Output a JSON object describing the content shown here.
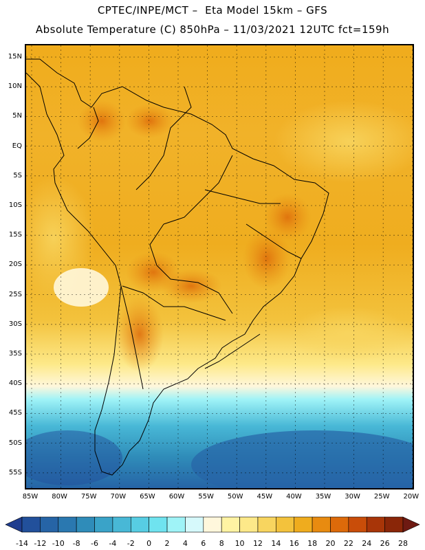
{
  "header": {
    "line1": "CPTEC/INPE/MCT –  Eta Model 15km – GFS",
    "line2": "Absolute Temperature (C) 850hPa – 11/03/2021 12UTC fct=159h"
  },
  "map": {
    "lat_labels": [
      "15N",
      "10N",
      "5N",
      "EQ",
      "5S",
      "10S",
      "15S",
      "20S",
      "25S",
      "30S",
      "35S",
      "40S",
      "45S",
      "50S",
      "55S"
    ],
    "lon_labels": [
      "85W",
      "80W",
      "75W",
      "70W",
      "65W",
      "60W",
      "55W",
      "50W",
      "45W",
      "40W",
      "35W",
      "30W",
      "25W",
      "20W"
    ]
  },
  "colorbar": {
    "levels": [
      "-14",
      "-12",
      "-10",
      "-8",
      "-6",
      "-4",
      "-2",
      "0",
      "2",
      "4",
      "6",
      "8",
      "10",
      "12",
      "14",
      "16",
      "18",
      "20",
      "22",
      "24",
      "26",
      "28"
    ],
    "colors": [
      "#1f3d8f",
      "#22509b",
      "#2664a6",
      "#2a78b0",
      "#2f8cb9",
      "#3aa3c8",
      "#48b8d6",
      "#57cde3",
      "#6fe3ef",
      "#9ff3f7",
      "#d6f9fb",
      "#fff7dc",
      "#fff3a3",
      "#fde989",
      "#f8d55f",
      "#f3c23c",
      "#efac1e",
      "#e88b10",
      "#dd6a0a",
      "#c94d09",
      "#a83508",
      "#8a2608",
      "#6e1a12"
    ],
    "colors_note": ""
  }
}
